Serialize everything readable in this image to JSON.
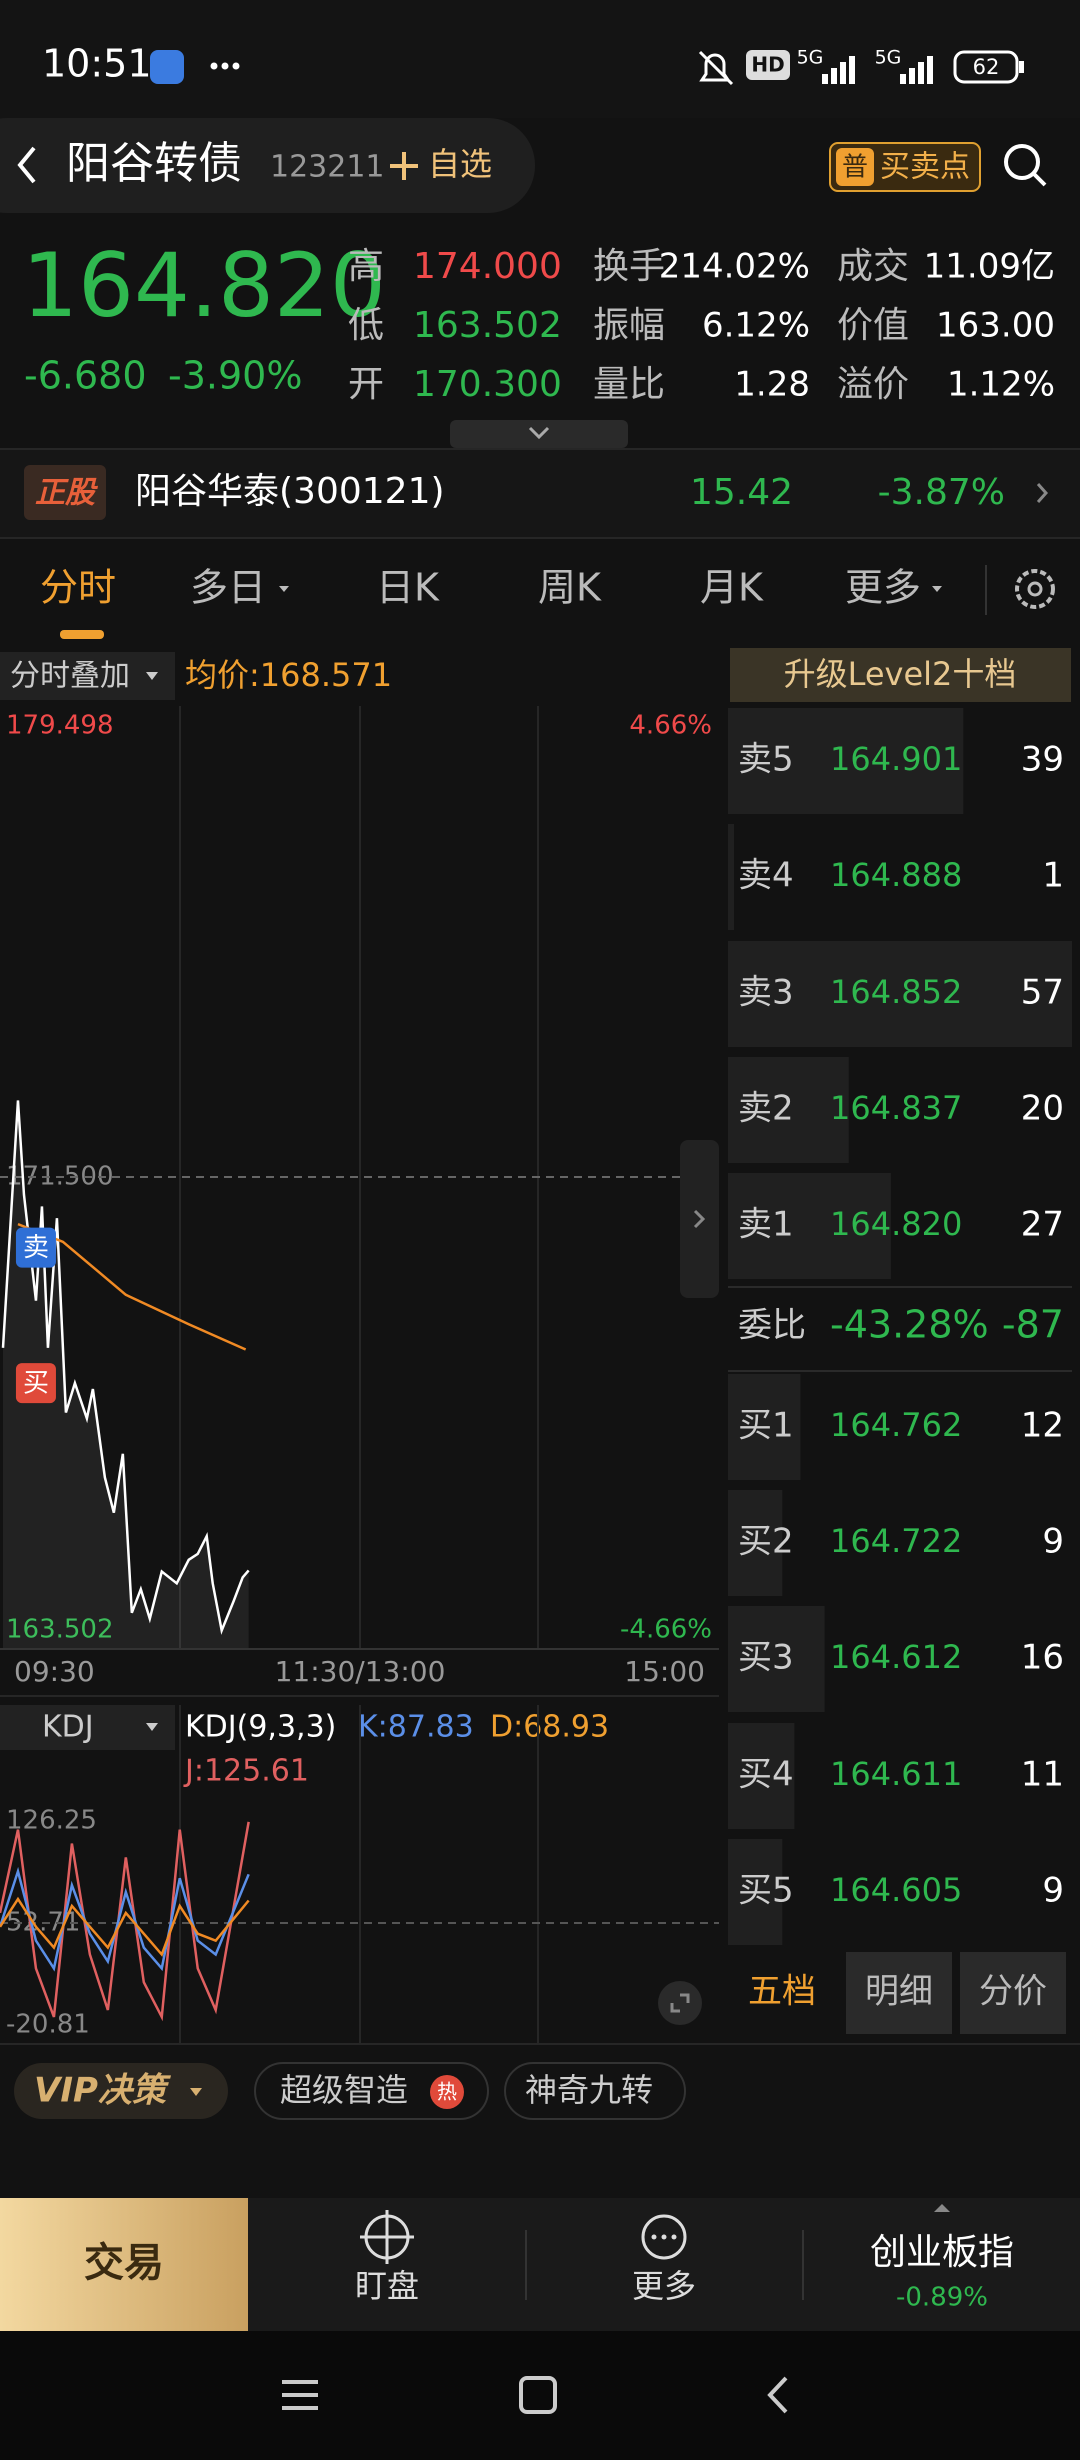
{
  "status_bar": {
    "time": "10:51",
    "hd": "HD",
    "net_1": "5G",
    "net_2": "5G",
    "battery": "62"
  },
  "header": {
    "name": "阳谷转债",
    "code": "123211",
    "watch": "自选",
    "signal_icon": "普",
    "signal": "买卖点"
  },
  "quote": {
    "price": "164.820",
    "change": "-6.680",
    "change_pct": "-3.90%",
    "stats": [
      [
        {
          "label": "高",
          "value": "174.000",
          "color": "#f04a4a"
        },
        {
          "label": "换手",
          "value": "214.02%"
        },
        {
          "label": "成交",
          "value": "11.09亿"
        }
      ],
      [
        {
          "label": "低",
          "value": "163.502",
          "color": "#2fb84f"
        },
        {
          "label": "振幅",
          "value": "6.12%"
        },
        {
          "label": "价值",
          "value": "163.00"
        }
      ],
      [
        {
          "label": "开",
          "value": "170.300",
          "color": "#2fb84f"
        },
        {
          "label": "量比",
          "value": "1.28"
        },
        {
          "label": "溢价",
          "value": "1.12%"
        }
      ]
    ]
  },
  "underlying": {
    "badge": "正股",
    "name": "阳谷华泰(300121)",
    "price": "15.42",
    "change_pct": "-3.87%"
  },
  "tabs": {
    "items": [
      "分时",
      "多日",
      "日K",
      "周K",
      "月K",
      "更多"
    ],
    "active": 0
  },
  "intraday": {
    "overlay": "分时叠加",
    "avg_label": "均价:168.571",
    "level2": "升级Level2十档",
    "ylim": [
      163.502,
      179.498
    ],
    "xlim": [
      0,
      240
    ],
    "yticks": [
      179.498,
      {
        "value": 171.5,
        "label": "171.500"
      },
      163.502
    ],
    "pct_top": "4.66%",
    "pct_bottom": "-4.66%",
    "time_labels": [
      "09:30",
      "11:30/13:00",
      "15:00"
    ],
    "minutes": [
      1,
      6,
      8,
      12,
      14,
      16,
      19,
      22,
      25,
      29,
      31,
      35,
      38,
      41,
      44,
      47,
      50,
      54,
      59,
      63,
      66,
      69,
      71,
      74,
      78,
      81,
      83
    ],
    "price": [
      168.6,
      172.8,
      171.2,
      169.4,
      171.0,
      168.6,
      170.8,
      167.5,
      168.0,
      167.4,
      167.9,
      166.4,
      165.8,
      166.8,
      164.1,
      164.5,
      164.0,
      164.8,
      164.6,
      165.0,
      165.1,
      165.4,
      164.6,
      163.8,
      164.3,
      164.7,
      164.82
    ],
    "price_color": "#ffffff",
    "avg_minutes": [
      6,
      21,
      42,
      63,
      82
    ],
    "avg": [
      170.7,
      170.4,
      169.5,
      169.0,
      168.571
    ],
    "avg_color": "#f08a24",
    "signals": [
      {
        "label": "卖",
        "minute": 12,
        "price": 170.3,
        "color": "#2f6fd6"
      },
      {
        "label": "买",
        "minute": 12,
        "price": 168.0,
        "color": "#e04a3a"
      }
    ]
  },
  "kdj": {
    "selector": "KDJ",
    "params": "KDJ(9,3,3)",
    "k_label": "K:87.83",
    "d_label": "D:68.93",
    "j_label": "J:125.61",
    "ylim": [
      -20.81,
      126.25
    ],
    "yticks": [
      126.25,
      52.71,
      -20.81
    ],
    "minutes": [
      0,
      6,
      12,
      18,
      24,
      30,
      36,
      42,
      48,
      54,
      60,
      66,
      72,
      83
    ],
    "series": [
      {
        "color": "#e06060",
        "values": [
          60,
          120,
          20,
          -15,
          110,
          30,
          -10,
          100,
          10,
          -15,
          120,
          20,
          -10,
          125.61
        ]
      },
      {
        "color": "#5b8fe8",
        "values": [
          50,
          90,
          40,
          20,
          80,
          45,
          25,
          75,
          35,
          20,
          85,
          40,
          30,
          87.83
        ]
      },
      {
        "color": "#f08a24",
        "values": [
          50,
          70,
          50,
          35,
          65,
          50,
          35,
          60,
          45,
          30,
          65,
          45,
          40,
          68.93
        ]
      }
    ]
  },
  "order_book": {
    "asks": [
      {
        "label": "卖5",
        "price": "164.901",
        "volume": 39
      },
      {
        "label": "卖4",
        "price": "164.888",
        "volume": 1
      },
      {
        "label": "卖3",
        "price": "164.852",
        "volume": 57
      },
      {
        "label": "卖2",
        "price": "164.837",
        "volume": 20
      },
      {
        "label": "卖1",
        "price": "164.820",
        "volume": 27
      }
    ],
    "ratio_label": "委比",
    "ratio": "-43.28%",
    "ratio_diff": "-87",
    "bids": [
      {
        "label": "买1",
        "price": "164.762",
        "volume": 12
      },
      {
        "label": "买2",
        "price": "164.722",
        "volume": 9
      },
      {
        "label": "买3",
        "price": "164.612",
        "volume": 16
      },
      {
        "label": "买4",
        "price": "164.611",
        "volume": 11
      },
      {
        "label": "买5",
        "price": "164.605",
        "volume": 9
      }
    ],
    "tabs": [
      "五档",
      "明细",
      "分价"
    ]
  },
  "chips": {
    "items": [
      "VIP决策",
      "超级智造",
      "神奇九转"
    ],
    "hot": "热"
  },
  "bottom_nav": {
    "trade": "交易",
    "items": [
      "盯盘",
      "更多"
    ],
    "index_name": "创业板指",
    "index_change": "-0.89%"
  }
}
